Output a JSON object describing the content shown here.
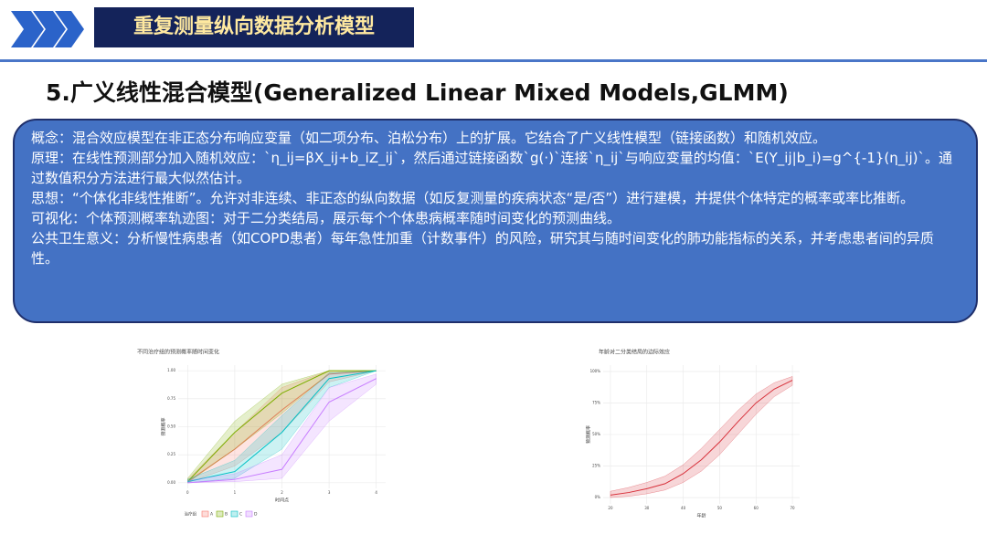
{
  "header": {
    "title": "重复测量纵向数据分析模型"
  },
  "section_title": "5.广义线性混合模型(Generalized Linear Mixed Models,GLMM)",
  "concept_box": {
    "paragraphs": [
      "概念：混合效应模型在非正态分布响应变量（如二项分布、泊松分布）上的扩展。它结合了广义线性模型（链接函数）和随机效应。",
      "原理：在线性预测部分加入随机效应：`η_ij=βX_ij+b_iZ_ij`，然后通过链接函数`g(·)`连接`η_ij`与响应变量的均值：`E(Y_ij|b_i)=g^{-1}(η_ij)`。通过数值积分方法进行最大似然估计。",
      "思想：“个体化非线性推断”。允许对非连续、非正态的纵向数据（如反复测量的疾病状态“是/否”）进行建模，并提供个体特定的概率或率比推断。",
      "可视化：个体预测概率轨迹图：对于二分类结局，展示每个个体患病概率随时间变化的预测曲线。",
      "公共卫生意义：分析慢性病患者（如COPD患者）每年急性加重（计数事件）的风险，研究其与随时间变化的肺功能指标的关系，并考虑患者间的异质性。"
    ]
  },
  "chart_data": [
    {
      "type": "line",
      "title": "不同治疗组的预测概率随时间变化",
      "x_label": "时间点",
      "y_label": "预测概率",
      "legend_title": "治疗组",
      "grid": true,
      "x": [
        0,
        1,
        2,
        3,
        4
      ],
      "xlim": [
        -0.2,
        4.2
      ],
      "xticks": [
        0,
        1,
        2,
        3,
        4
      ],
      "ylim": [
        -0.05,
        1.05
      ],
      "yticks": [
        {
          "value": 0,
          "label": "0.00"
        },
        {
          "value": 0.25,
          "label": "0.25"
        },
        {
          "value": 0.5,
          "label": "0.50"
        },
        {
          "value": 0.75,
          "label": "0.75"
        },
        {
          "value": 1,
          "label": "1.00"
        }
      ],
      "series": [
        {
          "name": "A",
          "color": "#F8766D",
          "values": [
            0.01,
            0.3,
            0.65,
            0.97,
            1.0
          ],
          "lower": [
            0.0,
            0.15,
            0.45,
            0.9,
            1.0
          ],
          "upper": [
            0.03,
            0.45,
            0.85,
            1.0,
            1.0
          ]
        },
        {
          "name": "B",
          "color": "#7CAE00",
          "values": [
            0.01,
            0.45,
            0.8,
            1.0,
            1.0
          ],
          "lower": [
            0.0,
            0.3,
            0.62,
            0.98,
            1.0
          ],
          "upper": [
            0.04,
            0.55,
            0.88,
            1.0,
            1.0
          ]
        },
        {
          "name": "C",
          "color": "#00BFC4",
          "values": [
            0.01,
            0.1,
            0.45,
            0.93,
            1.0
          ],
          "lower": [
            0.0,
            0.04,
            0.3,
            0.85,
            1.0
          ],
          "upper": [
            0.03,
            0.2,
            0.6,
            0.98,
            1.0
          ]
        },
        {
          "name": "D",
          "color": "#C77CFF",
          "values": [
            0.0,
            0.03,
            0.12,
            0.72,
            0.93
          ],
          "lower": [
            0.0,
            0.01,
            0.04,
            0.55,
            0.88
          ],
          "upper": [
            0.02,
            0.08,
            0.25,
            0.85,
            0.97
          ]
        }
      ]
    },
    {
      "type": "line",
      "title": "年龄对二分类结局的边际效应",
      "x_label": "年龄",
      "y_label": "预测概率",
      "grid": true,
      "x": [
        20,
        25,
        30,
        35,
        40,
        45,
        50,
        55,
        60,
        65,
        70
      ],
      "xlim": [
        18,
        72
      ],
      "xticks": [
        20,
        30,
        40,
        50,
        60,
        70
      ],
      "ylim": [
        -5,
        105
      ],
      "yticks": [
        {
          "value": 0,
          "label": "0%"
        },
        {
          "value": 25,
          "label": "25%"
        },
        {
          "value": 50,
          "label": "50%"
        },
        {
          "value": 75,
          "label": "75%"
        },
        {
          "value": 100,
          "label": "100%"
        }
      ],
      "series": [
        {
          "name": "预测概率",
          "color": "#d7303a",
          "values": [
            2,
            4,
            7,
            11,
            19,
            30,
            44,
            60,
            75,
            86,
            93
          ],
          "lower": [
            0,
            1,
            3,
            6,
            12,
            21,
            34,
            50,
            66,
            80,
            89
          ],
          "upper": [
            5,
            8,
            12,
            17,
            26,
            39,
            54,
            69,
            82,
            91,
            96
          ]
        }
      ]
    }
  ]
}
